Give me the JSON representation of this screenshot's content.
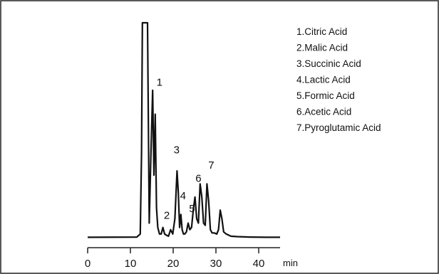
{
  "chart_data": {
    "type": "line",
    "title": "",
    "xlabel": "",
    "x_unit": "min",
    "xlim": [
      0,
      45
    ],
    "xticks": [
      0,
      10,
      20,
      30,
      40
    ],
    "ylabel": "",
    "grid": false,
    "legend_position": "top-right",
    "series": [
      {
        "x": [
          0,
          11.5,
          12.3,
          12.6,
          12.8,
          13.0,
          13.6,
          14.0,
          14.4,
          14.8,
          15.2,
          15.5,
          15.8,
          16.1,
          16.4,
          16.8,
          17.2,
          17.6,
          18.0,
          18.4,
          18.9,
          19.4,
          19.9,
          20.4,
          20.9,
          21.2,
          21.5,
          21.8,
          22.1,
          22.4,
          22.7,
          23.1,
          23.5,
          23.9,
          24.3,
          24.7,
          25.1,
          25.5,
          25.9,
          26.3,
          26.7,
          27.1,
          27.5,
          27.9,
          28.3,
          28.7,
          29.1,
          29.6,
          30.2,
          30.6,
          31.0,
          31.4,
          31.8,
          32.4,
          33.5,
          35,
          38,
          42,
          45
        ],
        "y": [
          1.5,
          1.6,
          3,
          40,
          100,
          100,
          100,
          100,
          8,
          40,
          69,
          30,
          58,
          15,
          6,
          3,
          3,
          6,
          3,
          2.5,
          2,
          5,
          3,
          10,
          32,
          22,
          6,
          12,
          5,
          3,
          3,
          4,
          8,
          5,
          6,
          14,
          20,
          10,
          8,
          26,
          20,
          8,
          7,
          26,
          18,
          5,
          3.5,
          3.5,
          3,
          5,
          14,
          10,
          4,
          3,
          2,
          1.8,
          1.6,
          1.5,
          1.5
        ]
      }
    ],
    "peak_labels": [
      {
        "text": "1",
        "x": 16.8,
        "y": 71
      },
      {
        "text": "2",
        "x": 18.5,
        "y": 10
      },
      {
        "text": "3",
        "x": 20.8,
        "y": 40
      },
      {
        "text": "4",
        "x": 22.3,
        "y": 19
      },
      {
        "text": "5",
        "x": 24.4,
        "y": 13
      },
      {
        "text": "6",
        "x": 25.9,
        "y": 27
      },
      {
        "text": "7",
        "x": 28.9,
        "y": 33
      }
    ],
    "legend": [
      "1.Citric Acid",
      "2.Malic Acid",
      "3.Succinic Acid",
      "4.Lactic Acid",
      "5.Formic Acid",
      "6.Acetic Acid",
      "7.Pyroglutamic Acid"
    ]
  }
}
